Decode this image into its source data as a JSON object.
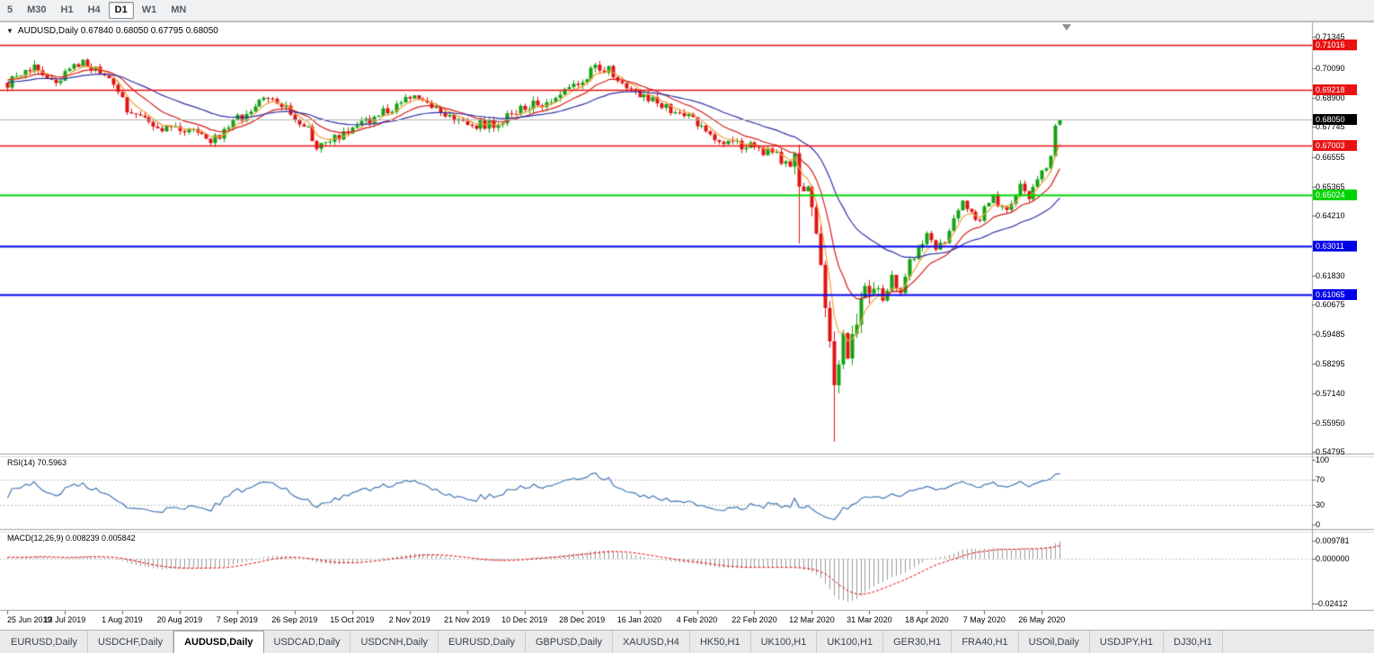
{
  "toolbar": {
    "periods": [
      {
        "label": "5",
        "active": false
      },
      {
        "label": "M30",
        "active": false
      },
      {
        "label": "H1",
        "active": false
      },
      {
        "label": "H4",
        "active": false
      },
      {
        "label": "D1",
        "active": true
      },
      {
        "label": "W1",
        "active": false
      },
      {
        "label": "MN",
        "active": false
      }
    ]
  },
  "chart": {
    "title": "AUDUSD,Daily 0.67840 0.68050 0.67795 0.68050",
    "symbol": "AUDUSD",
    "period": "Daily",
    "price_axis_labels": [
      "0.71345",
      "0.70090",
      "0.68900",
      "0.67745",
      "0.66555",
      "0.65365",
      "0.64210",
      "0.63020",
      "0.61830",
      "0.60675",
      "0.59485",
      "0.58295",
      "0.57140",
      "0.55950",
      "0.54795"
    ],
    "hlines": [
      {
        "value": 0.71016,
        "label": "0.71016",
        "color": "#e81212",
        "width": 1.5
      },
      {
        "value": 0.69218,
        "label": "0.69218",
        "color": "#e81212",
        "width": 1.5
      },
      {
        "value": 0.67003,
        "label": "0.67003",
        "color": "#e81212",
        "width": 1.5
      },
      {
        "value": 0.65024,
        "label": "0.65024",
        "color": "#00d400",
        "width": 2
      },
      {
        "value": 0.63011,
        "label": "0.63011",
        "color": "#0000e8",
        "width": 2
      },
      {
        "value": 0.61065,
        "label": "0.61065",
        "color": "#0000e8",
        "width": 2
      }
    ],
    "current_price": {
      "value": 0.6805,
      "label": "0.68050",
      "badge_color": "#000000",
      "line_color": "#b0b0b0"
    },
    "date_labels": [
      "25 Jun 2019",
      "13 Jul 2019",
      "1 Aug 2019",
      "20 Aug 2019",
      "7 Sep 2019",
      "26 Sep 2019",
      "15 Oct 2019",
      "2 Nov 2019",
      "21 Nov 2019",
      "10 Dec 2019",
      "28 Dec 2019",
      "16 Jan 2020",
      "4 Feb 2020",
      "22 Feb 2020",
      "12 Mar 2020",
      "31 Mar 2020",
      "18 Apr 2020",
      "7 May 2020",
      "26 May 2020"
    ]
  },
  "rsi": {
    "header": "RSI(14) 70.5963",
    "period": 14,
    "current": 70.5963,
    "line_color": "#4576b5",
    "levels": [
      {
        "label": "100",
        "value": 100,
        "dashed": false
      },
      {
        "label": "70",
        "value": 70,
        "dashed": true
      },
      {
        "label": "30",
        "value": 30,
        "dashed": true
      },
      {
        "label": "0",
        "value": 0,
        "dashed": false
      }
    ]
  },
  "macd": {
    "header": "MACD(12,26,9) 0.008239 0.005842",
    "fast": 12,
    "slow": 26,
    "signal": 9,
    "macd_value": 0.008239,
    "signal_value": 0.005842,
    "histogram_color": "#9b9b9b",
    "signal_color": "#e00000",
    "levels": [
      {
        "label": "0.009781",
        "value": 0.009781
      },
      {
        "label": "0.000000",
        "value": 0.0
      },
      {
        "label": "-0.02412",
        "value": -0.02412
      }
    ]
  },
  "tabs": [
    {
      "label": "EURUSD,Daily",
      "active": false
    },
    {
      "label": "USDCHF,Daily",
      "active": false
    },
    {
      "label": "AUDUSD,Daily",
      "active": true
    },
    {
      "label": "USDCAD,Daily",
      "active": false
    },
    {
      "label": "USDCNH,Daily",
      "active": false
    },
    {
      "label": "EURUSD,Daily",
      "active": false
    },
    {
      "label": "GBPUSD,Daily",
      "active": false
    },
    {
      "label": "XAUUSD,H4",
      "active": false
    },
    {
      "label": "HK50,H1",
      "active": false
    },
    {
      "label": "UK100,H1",
      "active": false
    },
    {
      "label": "UK100,H1",
      "active": false
    },
    {
      "label": "GER30,H1",
      "active": false
    },
    {
      "label": "FRA40,H1",
      "active": false
    },
    {
      "label": "USOil,Daily",
      "active": false
    },
    {
      "label": "USDJPY,H1",
      "active": false
    },
    {
      "label": "DJ30,H1",
      "active": false
    }
  ],
  "chart_data": {
    "type": "candlestick",
    "symbol": "AUDUSD",
    "timeframe": "Daily",
    "ohlc_current": {
      "open": 0.6784,
      "high": 0.6805,
      "low": 0.67795,
      "close": 0.6805
    },
    "y_axis": {
      "top": 0.71345,
      "bottom": 0.54795
    },
    "candle_count": 239,
    "bull_color": "#14a114",
    "bear_color": "#e01414",
    "price_anchors": [
      [
        0,
        0.695
      ],
      [
        4,
        0.6995
      ],
      [
        7,
        0.702
      ],
      [
        10,
        0.6945
      ],
      [
        14,
        0.7005
      ],
      [
        17,
        0.7035
      ],
      [
        21,
        0.6985
      ],
      [
        25,
        0.6925
      ],
      [
        27,
        0.6845
      ],
      [
        31,
        0.6795
      ],
      [
        35,
        0.6755
      ],
      [
        38,
        0.6785
      ],
      [
        42,
        0.675
      ],
      [
        45,
        0.6715
      ],
      [
        48,
        0.674
      ],
      [
        52,
        0.6805
      ],
      [
        57,
        0.687
      ],
      [
        60,
        0.6885
      ],
      [
        64,
        0.6825
      ],
      [
        68,
        0.6765
      ],
      [
        70,
        0.67
      ],
      [
        73,
        0.6725
      ],
      [
        77,
        0.676
      ],
      [
        81,
        0.6795
      ],
      [
        85,
        0.6835
      ],
      [
        89,
        0.6875
      ],
      [
        93,
        0.689
      ],
      [
        97,
        0.685
      ],
      [
        101,
        0.6815
      ],
      [
        105,
        0.6785
      ],
      [
        109,
        0.678
      ],
      [
        113,
        0.6815
      ],
      [
        117,
        0.685
      ],
      [
        121,
        0.6875
      ],
      [
        125,
        0.6905
      ],
      [
        129,
        0.6945
      ],
      [
        131,
        0.6985
      ],
      [
        134,
        0.7015
      ],
      [
        137,
        0.699
      ],
      [
        141,
        0.6935
      ],
      [
        144,
        0.6895
      ],
      [
        148,
        0.6865
      ],
      [
        152,
        0.6835
      ],
      [
        156,
        0.6785
      ],
      [
        160,
        0.6735
      ],
      [
        164,
        0.671
      ],
      [
        168,
        0.6695
      ],
      [
        171,
        0.668
      ],
      [
        174,
        0.6655
      ],
      [
        176,
        0.662
      ],
      [
        178,
        0.665
      ],
      [
        179,
        0.658
      ],
      [
        180,
        0.652
      ],
      [
        181,
        0.65
      ],
      [
        182,
        0.645
      ],
      [
        183,
        0.632
      ],
      [
        184,
        0.623
      ],
      [
        185,
        0.605
      ],
      [
        186,
        0.59
      ],
      [
        187,
        0.576
      ],
      [
        188,
        0.583
      ],
      [
        189,
        0.595
      ],
      [
        190,
        0.587
      ],
      [
        192,
        0.601
      ],
      [
        194,
        0.61
      ],
      [
        196,
        0.614
      ],
      [
        198,
        0.609
      ],
      [
        200,
        0.618
      ],
      [
        202,
        0.612
      ],
      [
        204,
        0.623
      ],
      [
        206,
        0.63
      ],
      [
        208,
        0.635
      ],
      [
        210,
        0.628
      ],
      [
        212,
        0.633
      ],
      [
        214,
        0.639
      ],
      [
        216,
        0.649
      ],
      [
        218,
        0.642
      ],
      [
        220,
        0.639
      ],
      [
        221,
        0.645
      ],
      [
        223,
        0.649
      ],
      [
        225,
        0.644
      ],
      [
        227,
        0.648
      ],
      [
        229,
        0.653
      ],
      [
        231,
        0.65
      ],
      [
        233,
        0.656
      ],
      [
        234,
        0.66
      ],
      [
        235,
        0.662
      ],
      [
        236,
        0.666
      ],
      [
        237,
        0.678
      ],
      [
        238,
        0.6805
      ]
    ],
    "special_wicks": [
      {
        "index": 179,
        "low": 0.631
      },
      {
        "index": 187,
        "low": 0.552
      }
    ],
    "moving_averages": [
      {
        "name": "fast",
        "period": 5,
        "color": "#f2a23c"
      },
      {
        "name": "medium",
        "period": 13,
        "color": "#d61c1c"
      },
      {
        "name": "slow",
        "period": 34,
        "color": "#2d31a6"
      }
    ],
    "generation": {
      "seed": 987654321,
      "prehistory": 60,
      "prehistory_base": 0.6945,
      "base_amp": 0.0021,
      "crash_amp": 0.005,
      "crash_start": 178,
      "crash_end": 196,
      "base_wick": 0.0017,
      "crash_wick": 0.0045
    }
  }
}
